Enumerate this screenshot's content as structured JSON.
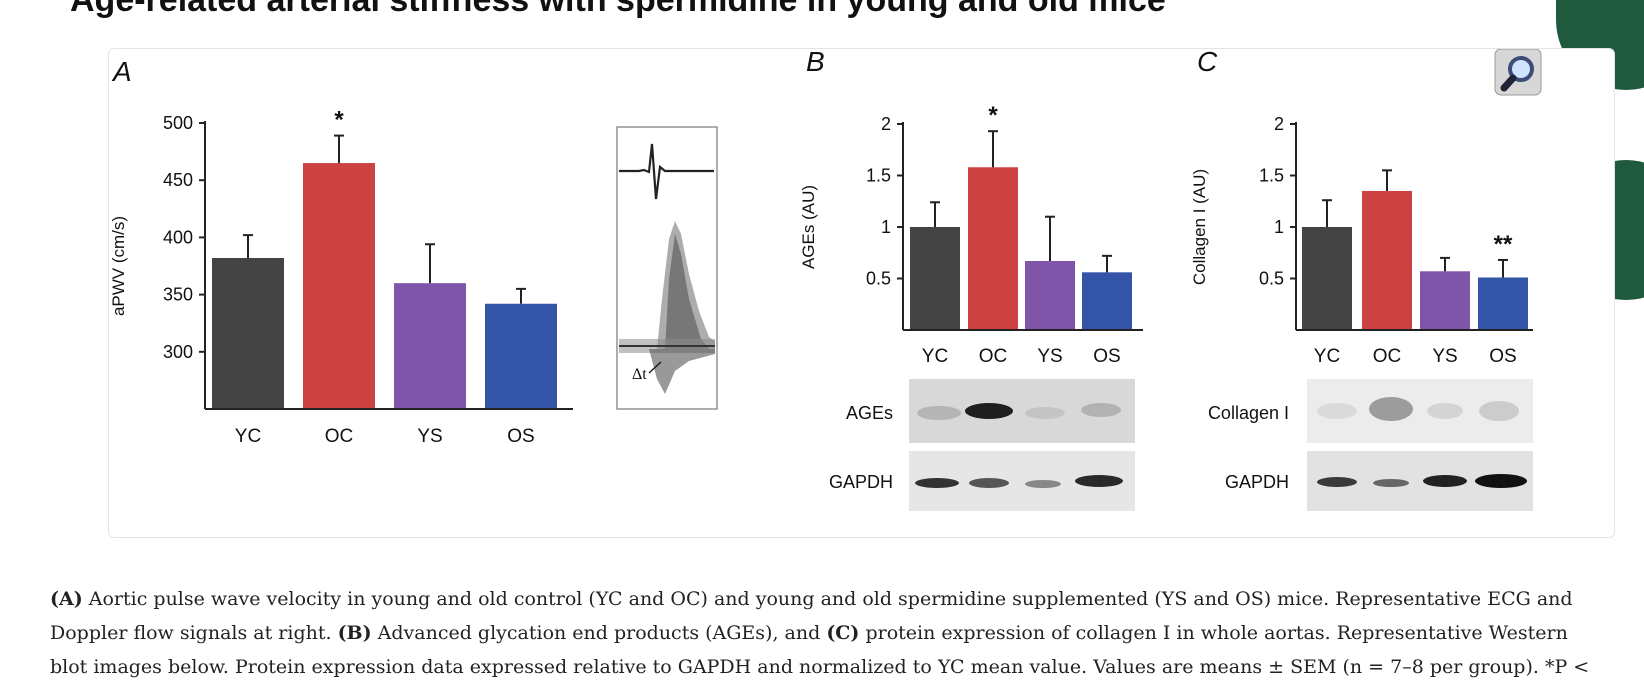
{
  "header": {
    "title": "Age-related arterial stiffness with spermidine in young and old mice"
  },
  "colors": {
    "YC": "#444444",
    "OC": "#cc4141",
    "YS": "#7e55a8",
    "OS": "#3454a8"
  },
  "icons": {
    "zoom": "magnifier-icon"
  },
  "chart_data": [
    {
      "type": "bar",
      "panel_label": "A",
      "categories": [
        "YC",
        "OC",
        "YS",
        "OS"
      ],
      "values": [
        382,
        465,
        360,
        342
      ],
      "errors": [
        20,
        24,
        34,
        13
      ],
      "significance": [
        "",
        "*",
        "",
        ""
      ],
      "ylabel": "aPWV (cm/s)",
      "ylim": [
        250,
        500
      ],
      "yticks": [
        300,
        350,
        400,
        450,
        500
      ],
      "inset_labels": {
        "delta_t": "Δt"
      }
    },
    {
      "type": "bar",
      "panel_label": "B",
      "categories": [
        "YC",
        "OC",
        "YS",
        "OS"
      ],
      "values": [
        1.0,
        1.58,
        0.67,
        0.56
      ],
      "errors": [
        0.24,
        0.35,
        0.43,
        0.16
      ],
      "significance": [
        "",
        "*",
        "",
        ""
      ],
      "ylabel": "AGEs (AU)",
      "ylim": [
        0,
        2
      ],
      "yticks": [
        0.5,
        1,
        1.5,
        2
      ],
      "blot_labels": [
        "AGEs",
        "GAPDH"
      ]
    },
    {
      "type": "bar",
      "panel_label": "C",
      "categories": [
        "YC",
        "OC",
        "YS",
        "OS"
      ],
      "values": [
        1.0,
        1.35,
        0.57,
        0.51
      ],
      "errors": [
        0.26,
        0.2,
        0.13,
        0.17
      ],
      "significance": [
        "",
        "",
        "",
        "**"
      ],
      "ylabel": "Collagen I (AU)",
      "ylim": [
        0,
        2
      ],
      "yticks": [
        0.5,
        1,
        1.5,
        2
      ],
      "blot_labels": [
        "Collagen I",
        "GAPDH"
      ]
    }
  ],
  "caption": {
    "line1": {
      "b1": "(A)",
      "t1": " Aortic pulse wave velocity in young and old control (YC and OC) and young and old spermidine supplemented (YS and OS) mice. Representative ECG and"
    },
    "line2": {
      "t1": "Doppler flow signals at right. ",
      "b1": "(B)",
      "t2": " Advanced glycation end products (AGEs), and ",
      "b2": "(C)",
      "t3": " protein expression of collagen I in whole aortas. Representative Western"
    },
    "line3": {
      "t1": "blot images below. Protein expression data expressed relative to GAPDH and normalized to YC mean value. Values are means ± SEM (n = 7–8 per group). *P <"
    }
  }
}
